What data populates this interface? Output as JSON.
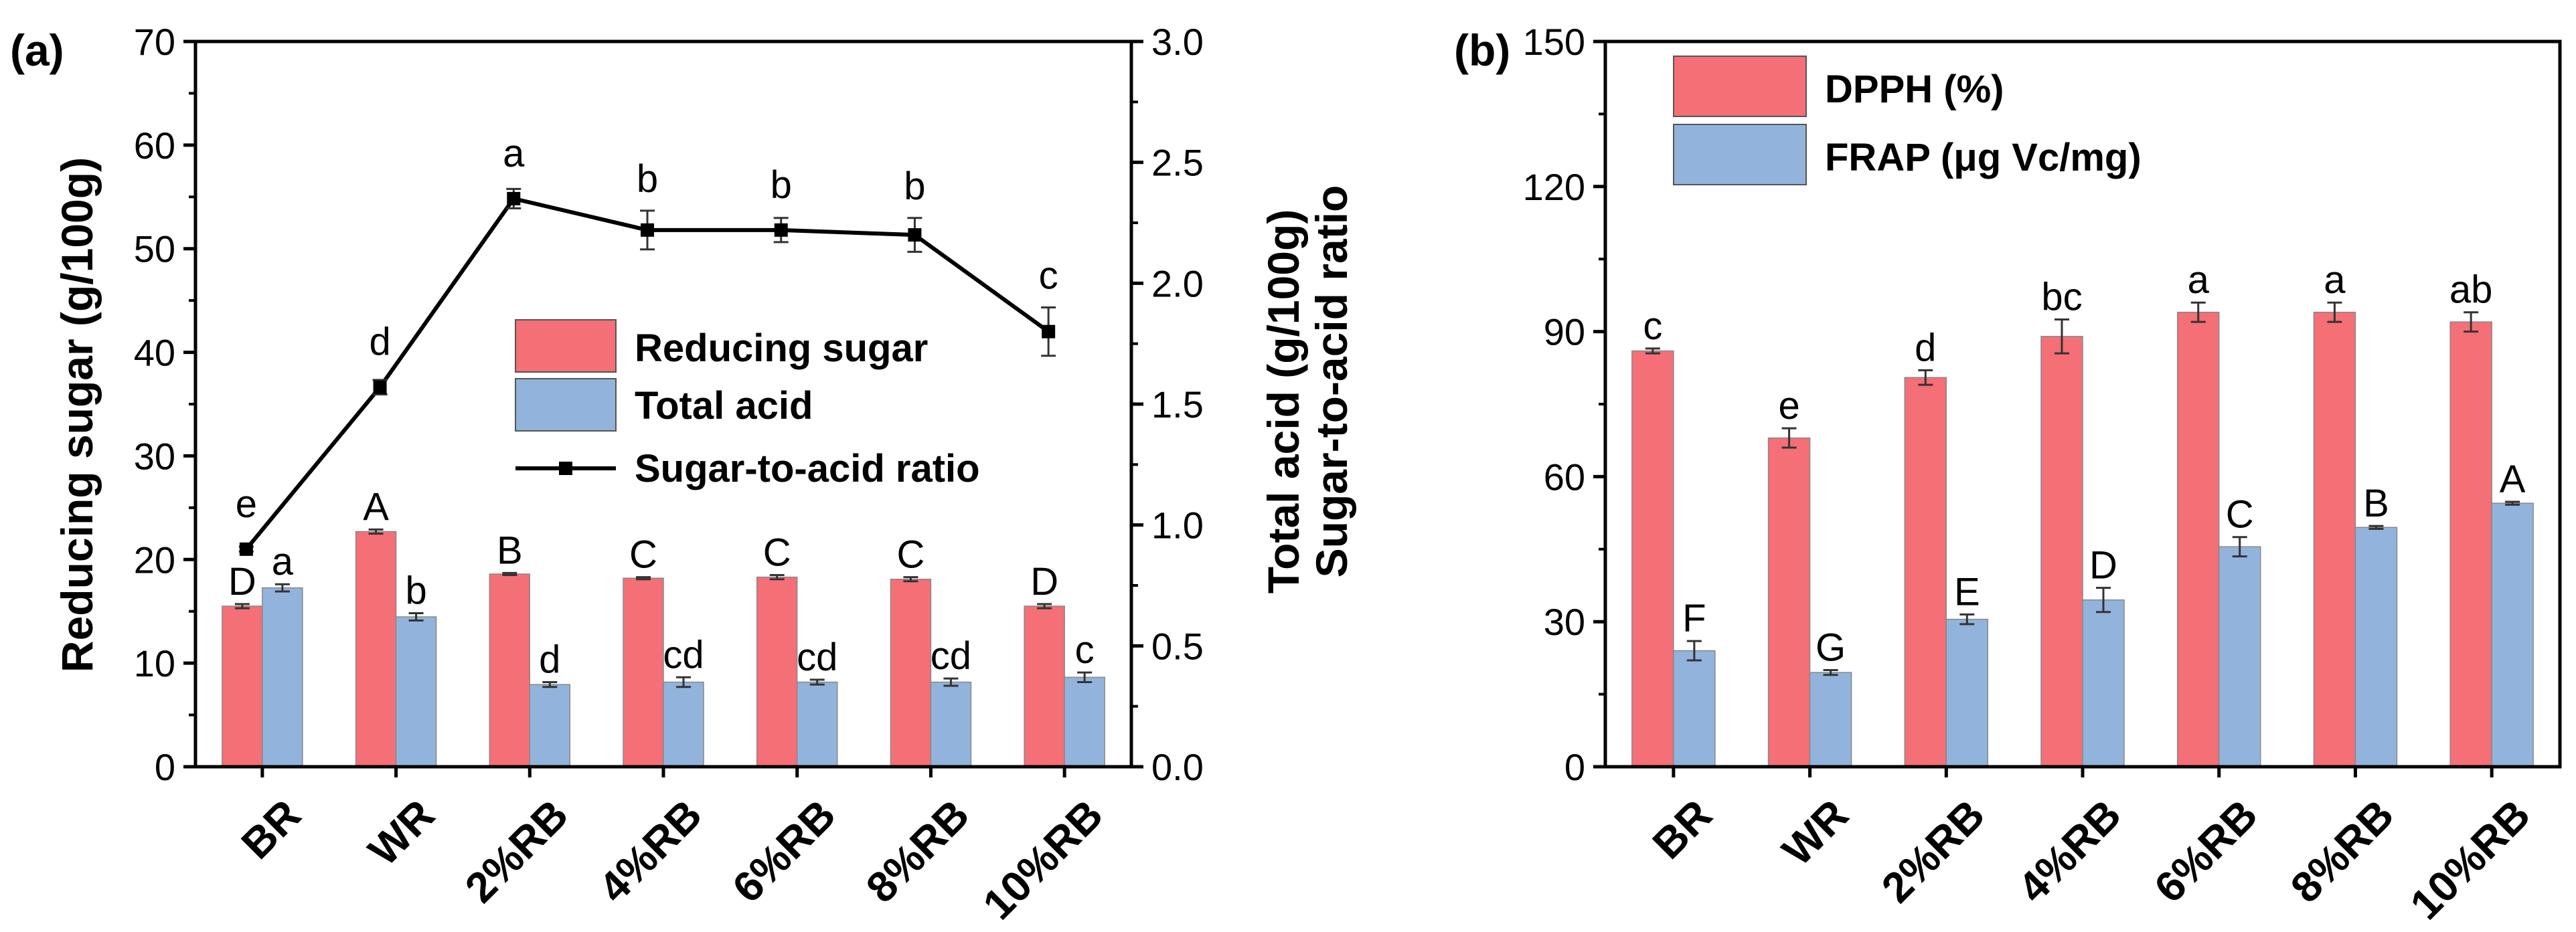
{
  "chart_data": [
    {
      "panel_label": "(a)",
      "type": "bar",
      "categories": [
        "BR",
        "WR",
        "2%RB",
        "4%RB",
        "6%RB",
        "8%RB",
        "10%RB"
      ],
      "ylabel": "Reducing sugar (g/100g)",
      "ylim": [
        0,
        70
      ],
      "yticks": [
        0,
        10,
        20,
        30,
        40,
        50,
        60,
        70
      ],
      "y2label_line1": "Total acid (g/100g)",
      "y2label_line2": "Sugar-to-acid ratio",
      "y2lim": [
        0.0,
        3.0
      ],
      "y2ticks": [
        0.0,
        0.5,
        1.0,
        1.5,
        2.0,
        2.5,
        3.0
      ],
      "y2tick_labels": [
        "0.0",
        "0.5",
        "1.0",
        "1.5",
        "2.0",
        "2.5",
        "3.0"
      ],
      "legend_position": "center-right",
      "series": [
        {
          "name": "Reducing sugar",
          "kind": "bar",
          "axis": "left",
          "color": "#f56f77",
          "values": [
            15.5,
            22.7,
            18.6,
            18.2,
            18.3,
            18.1,
            15.5
          ],
          "errors": [
            0.2,
            0.2,
            0.1,
            0.1,
            0.2,
            0.2,
            0.2
          ],
          "labels": [
            "D",
            "A",
            "B",
            "C",
            "C",
            "C",
            "D"
          ]
        },
        {
          "name": "Total acid",
          "kind": "bar",
          "axis": "right",
          "color": "#92b4dc",
          "values": [
            0.74,
            0.62,
            0.34,
            0.35,
            0.35,
            0.35,
            0.37
          ],
          "errors": [
            0.015,
            0.015,
            0.01,
            0.02,
            0.01,
            0.015,
            0.02
          ],
          "labels": [
            "a",
            "b",
            "d",
            "cd",
            "cd",
            "cd",
            "c"
          ]
        },
        {
          "name": "Sugar-to-acid ratio",
          "kind": "line",
          "axis": "right",
          "color": "#000000",
          "values": [
            0.9,
            1.57,
            2.35,
            2.22,
            2.22,
            2.2,
            1.8
          ],
          "errors": [
            0.01,
            0.03,
            0.04,
            0.08,
            0.05,
            0.07,
            0.1
          ],
          "labels": [
            "e",
            "d",
            "a",
            "b",
            "b",
            "b",
            "c"
          ]
        }
      ]
    },
    {
      "panel_label": "(b)",
      "type": "bar",
      "categories": [
        "BR",
        "WR",
        "2%RB",
        "4%RB",
        "6%RB",
        "8%RB",
        "10%RB"
      ],
      "ylim": [
        0,
        150
      ],
      "yticks": [
        0,
        30,
        60,
        90,
        120,
        150
      ],
      "legend_position": "top-left",
      "series": [
        {
          "name": "DPPH (%)",
          "color": "#f56f77",
          "values": [
            86,
            68,
            80.5,
            89,
            94,
            94,
            92
          ],
          "errors": [
            0.5,
            2.0,
            1.5,
            3.5,
            2.0,
            2.0,
            2.0
          ],
          "labels": [
            "c",
            "e",
            "d",
            "bc",
            "a",
            "a",
            "ab"
          ]
        },
        {
          "name": "FRAP (μg Vc/mg)",
          "color": "#92b4dc",
          "values": [
            24,
            19.5,
            30.5,
            34.5,
            45.5,
            49.5,
            54.5
          ],
          "errors": [
            2.0,
            0.5,
            1.0,
            2.5,
            2.0,
            0.3,
            0.3
          ],
          "labels": [
            "F",
            "G",
            "E",
            "D",
            "C",
            "B",
            "A"
          ]
        }
      ]
    }
  ]
}
